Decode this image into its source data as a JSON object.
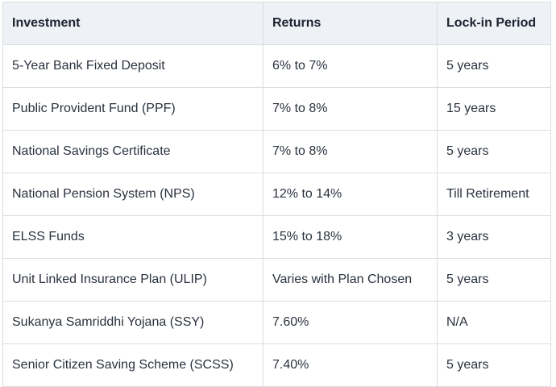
{
  "table": {
    "headers": [
      "Investment",
      "Returns",
      "Lock-in Period"
    ],
    "rows": [
      [
        "5-Year Bank Fixed Deposit",
        "6% to 7%",
        "5 years"
      ],
      [
        "Public Provident Fund (PPF)",
        "7% to 8%",
        "15 years"
      ],
      [
        "National Savings Certificate",
        "7% to 8%",
        "5 years"
      ],
      [
        "National Pension System (NPS)",
        "12% to 14%",
        "Till Retirement"
      ],
      [
        "ELSS Funds",
        "15% to 18%",
        "3 years"
      ],
      [
        "Unit Linked Insurance Plan (ULIP)",
        "Varies with Plan Chosen",
        "5 years"
      ],
      [
        "Sukanya Samriddhi Yojana (SSY)",
        "7.60%",
        "N/A"
      ],
      [
        "Senior Citizen Saving Scheme (SCSS)",
        "7.40%",
        "5 years"
      ]
    ]
  },
  "colors": {
    "header_bg": "#eef1f5",
    "border": "#d9dde2",
    "text": "#1f2733"
  }
}
